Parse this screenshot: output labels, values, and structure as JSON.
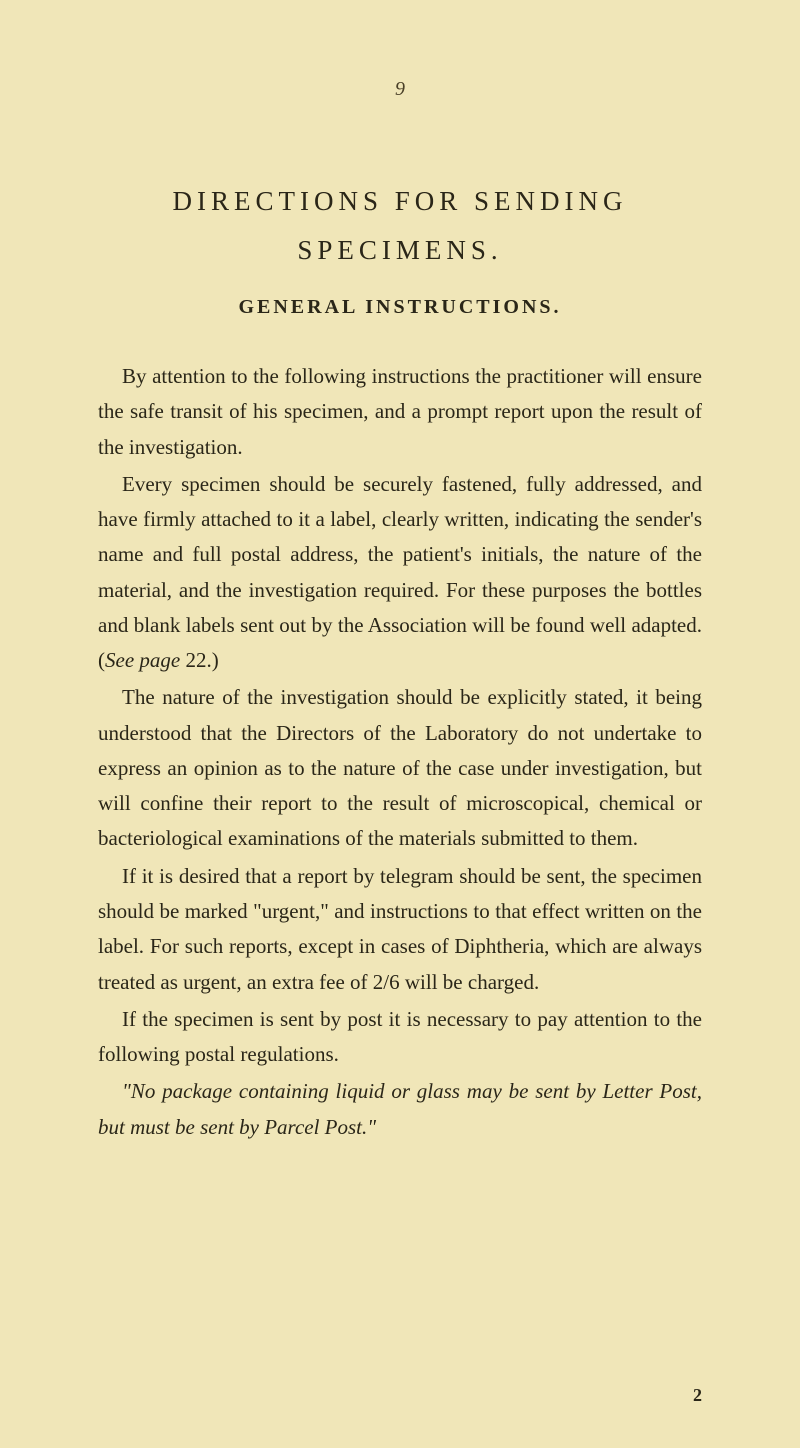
{
  "page": {
    "number": "9",
    "footerNumber": "2"
  },
  "title": {
    "line1": "DIRECTIONS FOR SENDING",
    "line2": "SPECIMENS."
  },
  "subtitle": "GENERAL INSTRUCTIONS.",
  "paragraphs": {
    "p1": "By attention to the following instructions the practitioner will ensure the safe transit of his specimen, and a prompt report upon the result of the investigation.",
    "p2_part1": "Every specimen should be securely fastened, fully addressed, and have firmly attached to it a label, clearly written, indicating the sender's name and full postal address, the patient's initials, the nature of the material, and the investigation required. For these purposes the bottles and blank labels sent out by the Association will be found well adapted. (",
    "p2_italic": "See page",
    "p2_part2": " 22.)",
    "p3": "The nature of the investigation should be explicitly stated, it being understood that the Directors of the Laboratory do not undertake to express an opinion as to the nature of the case under investigation, but will confine their report to the result of microscopical, chemical or bacteriological examinations of the materials submitted to them.",
    "p4": "If it is desired that a report by telegram should be sent, the specimen should be marked \"urgent,\" and instructions to that effect written on the label. For such reports, except in cases of Diphtheria, which are always treated as urgent, an extra fee of 2/6 will be charged.",
    "p5": "If the specimen is sent by post it is necessary to pay attention to the following postal regulations.",
    "quote": "\"No package containing liquid or glass may be sent by Letter Post, but must be sent by Parcel Post.\""
  },
  "styling": {
    "backgroundColor": "#f0e6b8",
    "textColor": "#2a2618",
    "pageWidth": 800,
    "pageHeight": 1448,
    "bodyFontSize": 21,
    "titleFontSize": 27,
    "subtitleFontSize": 20,
    "lineHeight": 1.68,
    "titleLetterSpacing": 5,
    "subtitleLetterSpacing": 3
  }
}
